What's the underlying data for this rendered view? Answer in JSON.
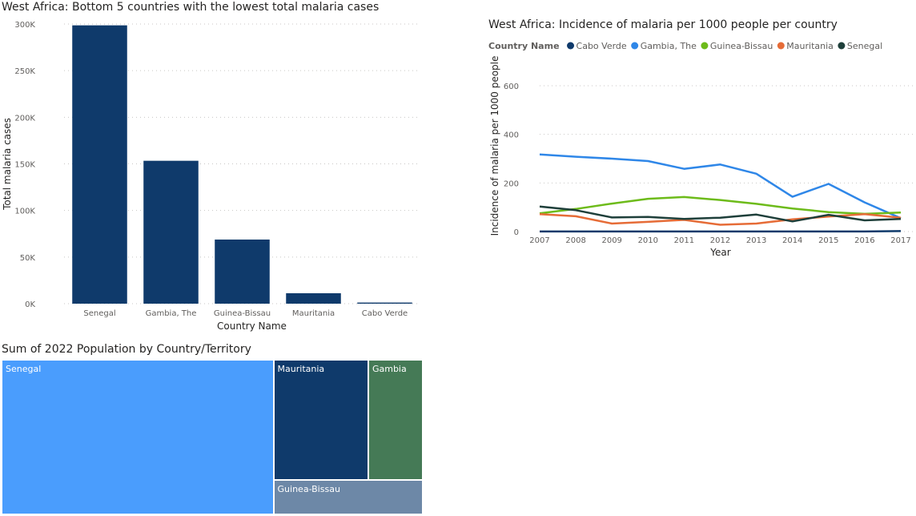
{
  "chart_data": [
    {
      "type": "bar",
      "title": "West Africa: Bottom 5 countries with the lowest total malaria cases",
      "xlabel": "Country Name",
      "ylabel": "Total malaria cases",
      "categories": [
        "Senegal",
        "Gambia, The",
        "Guinea-Bissau",
        "Mauritania",
        "Cabo Verde"
      ],
      "values": [
        298600,
        153300,
        68800,
        11200,
        1200
      ],
      "ylim": [
        0,
        300000
      ],
      "yticks": [
        {
          "value": 0,
          "label": "0K"
        },
        {
          "value": 50000,
          "label": "50K"
        },
        {
          "value": 100000,
          "label": "100K"
        },
        {
          "value": 150000,
          "label": "150K"
        },
        {
          "value": 200000,
          "label": "200K"
        },
        {
          "value": 250000,
          "label": "250K"
        },
        {
          "value": 300000,
          "label": "300K"
        }
      ],
      "color": "#0f3a6b",
      "grid": true
    },
    {
      "type": "line",
      "title": "West Africa: Incidence of malaria per 1000 people per country",
      "xlabel": "Year",
      "ylabel": "Incidence of malaria per 1000 people",
      "legend_title": "Country Name",
      "legend_position": "top-left",
      "x": [
        2007,
        2008,
        2009,
        2010,
        2011,
        2012,
        2013,
        2014,
        2015,
        2016,
        2017
      ],
      "ylim": [
        0,
        600
      ],
      "yticks": [
        0,
        200,
        400,
        600
      ],
      "grid": true,
      "series": [
        {
          "name": "Cabo Verde",
          "color": "#0f3a6b",
          "values": [
            0.3,
            0.2,
            0.2,
            0.3,
            0.2,
            0.2,
            0.3,
            0.2,
            0.2,
            0.3,
            2
          ]
        },
        {
          "name": "Gambia, The",
          "color": "#2f87e8",
          "values": [
            317,
            308,
            300,
            290,
            258,
            276,
            238,
            143,
            196,
            120,
            55
          ]
        },
        {
          "name": "Guinea-Bissau",
          "color": "#6dbb1a",
          "values": [
            75,
            93,
            115,
            135,
            142,
            130,
            114,
            95,
            80,
            73,
            78
          ]
        },
        {
          "name": "Mauritania",
          "color": "#e66c37",
          "values": [
            72,
            63,
            33,
            40,
            48,
            28,
            33,
            50,
            62,
            72,
            57
          ]
        },
        {
          "name": "Senegal",
          "color": "#1e3f3a",
          "values": [
            103,
            88,
            58,
            60,
            52,
            57,
            70,
            42,
            69,
            46,
            52
          ]
        }
      ]
    },
    {
      "type": "treemap",
      "title": "Sum of 2022 Population by Country/Territory",
      "items": [
        {
          "name": "Senegal",
          "value": 17.3,
          "color": "#4a9dfd"
        },
        {
          "name": "Mauritania",
          "value": 4.7,
          "color": "#0f3a6b"
        },
        {
          "name": "Gambia",
          "value": 2.7,
          "color": "#457a56"
        },
        {
          "name": "Guinea-Bissau",
          "value": 2.1,
          "color": "#6d88a7"
        }
      ]
    }
  ]
}
